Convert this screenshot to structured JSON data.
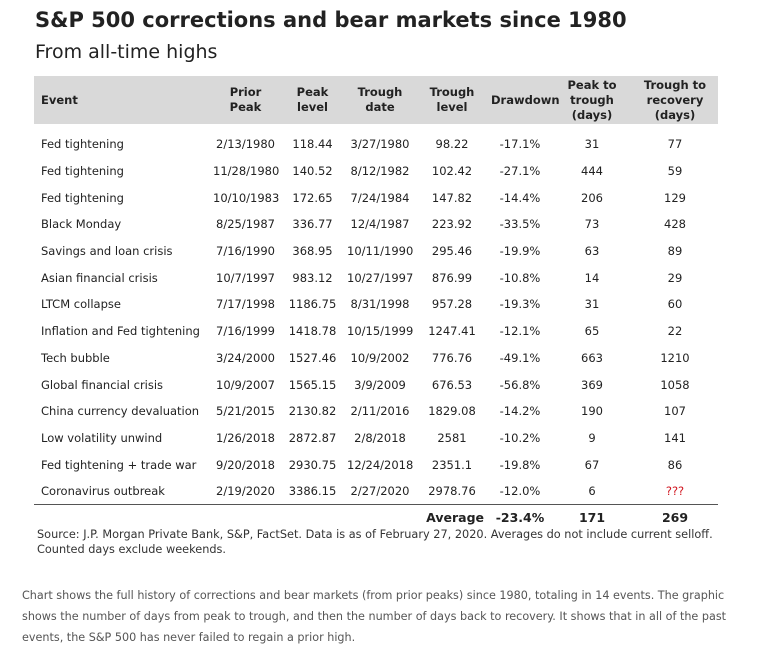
{
  "chart_data": {
    "type": "table",
    "title": "S&P 500 corrections and bear markets since 1980",
    "subtitle": "From all-time highs",
    "columns": [
      "Event",
      "Prior Peak",
      "Peak level",
      "Trough date",
      "Trough level",
      "Drawdown",
      "Peak to trough (days)",
      "Trough to recovery (days)"
    ],
    "header": {
      "event": "Event",
      "prior_peak": "Prior Peak",
      "peak_level": "Peak level",
      "trough_date": "Trough date",
      "trough_level": "Trough level",
      "drawdown": "Drawdown",
      "peak_to_trough_1": "Peak to",
      "peak_to_trough_2": "trough (days)",
      "trough_to_recovery_1": "Trough to",
      "trough_to_recovery_2": "recovery (days)"
    },
    "rows": [
      {
        "event": "Fed tightening",
        "prior_peak": "2/13/1980",
        "peak_level": "118.44",
        "trough_date": "3/27/1980",
        "trough_level": "98.22",
        "drawdown": "-17.1%",
        "peak_to_trough": "31",
        "trough_to_recovery": "77"
      },
      {
        "event": "Fed tightening",
        "prior_peak": "11/28/1980",
        "peak_level": "140.52",
        "trough_date": "8/12/1982",
        "trough_level": "102.42",
        "drawdown": "-27.1%",
        "peak_to_trough": "444",
        "trough_to_recovery": "59"
      },
      {
        "event": "Fed tightening",
        "prior_peak": "10/10/1983",
        "peak_level": "172.65",
        "trough_date": "7/24/1984",
        "trough_level": "147.82",
        "drawdown": "-14.4%",
        "peak_to_trough": "206",
        "trough_to_recovery": "129"
      },
      {
        "event": "Black Monday",
        "prior_peak": "8/25/1987",
        "peak_level": "336.77",
        "trough_date": "12/4/1987",
        "trough_level": "223.92",
        "drawdown": "-33.5%",
        "peak_to_trough": "73",
        "trough_to_recovery": "428"
      },
      {
        "event": "Savings and loan crisis",
        "prior_peak": "7/16/1990",
        "peak_level": "368.95",
        "trough_date": "10/11/1990",
        "trough_level": "295.46",
        "drawdown": "-19.9%",
        "peak_to_trough": "63",
        "trough_to_recovery": "89"
      },
      {
        "event": "Asian financial crisis",
        "prior_peak": "10/7/1997",
        "peak_level": "983.12",
        "trough_date": "10/27/1997",
        "trough_level": "876.99",
        "drawdown": "-10.8%",
        "peak_to_trough": "14",
        "trough_to_recovery": "29"
      },
      {
        "event": "LTCM collapse",
        "prior_peak": "7/17/1998",
        "peak_level": "1186.75",
        "trough_date": "8/31/1998",
        "trough_level": "957.28",
        "drawdown": "-19.3%",
        "peak_to_trough": "31",
        "trough_to_recovery": "60"
      },
      {
        "event": "Inflation and Fed tightening",
        "prior_peak": "7/16/1999",
        "peak_level": "1418.78",
        "trough_date": "10/15/1999",
        "trough_level": "1247.41",
        "drawdown": "-12.1%",
        "peak_to_trough": "65",
        "trough_to_recovery": "22"
      },
      {
        "event": "Tech bubble",
        "prior_peak": "3/24/2000",
        "peak_level": "1527.46",
        "trough_date": "10/9/2002",
        "trough_level": "776.76",
        "drawdown": "-49.1%",
        "peak_to_trough": "663",
        "trough_to_recovery": "1210"
      },
      {
        "event": "Global financial crisis",
        "prior_peak": "10/9/2007",
        "peak_level": "1565.15",
        "trough_date": "3/9/2009",
        "trough_level": "676.53",
        "drawdown": "-56.8%",
        "peak_to_trough": "369",
        "trough_to_recovery": "1058"
      },
      {
        "event": "China currency devaluation",
        "prior_peak": "5/21/2015",
        "peak_level": "2130.82",
        "trough_date": "2/11/2016",
        "trough_level": "1829.08",
        "drawdown": "-14.2%",
        "peak_to_trough": "190",
        "trough_to_recovery": "107"
      },
      {
        "event": "Low volatility unwind",
        "prior_peak": "1/26/2018",
        "peak_level": "2872.87",
        "trough_date": "2/8/2018",
        "trough_level": "2581",
        "drawdown": "-10.2%",
        "peak_to_trough": "9",
        "trough_to_recovery": "141"
      },
      {
        "event": "Fed tightening + trade war",
        "prior_peak": "9/20/2018",
        "peak_level": "2930.75",
        "trough_date": "12/24/2018",
        "trough_level": "2351.1",
        "drawdown": "-19.8%",
        "peak_to_trough": "67",
        "trough_to_recovery": "86"
      },
      {
        "event": "Coronavirus outbreak",
        "prior_peak": "2/19/2020",
        "peak_level": "3386.15",
        "trough_date": "2/27/2020",
        "trough_level": "2978.76",
        "drawdown": "-12.0%",
        "peak_to_trough": "6",
        "trough_to_recovery": "???"
      }
    ],
    "average": {
      "label": "Average",
      "drawdown": "-23.4%",
      "peak_to_trough": "171",
      "trough_to_recovery": "269"
    },
    "colors": {
      "header_background": "#d9d9d9",
      "highlight_red": "#d0141e"
    }
  },
  "source": "Source: J.P. Morgan Private Bank, S&P, FactSet. Data is as of February 27, 2020. Averages do not include current selloff. Counted days exclude weekends.",
  "description": "Chart shows the full history of corrections and bear markets (from prior peaks) since 1980, totaling in 14 events. The graphic shows the number of days from peak to trough, and then the number of days back to recovery. It shows that in all of the past events, the S&P 500 has never failed to regain a prior high."
}
